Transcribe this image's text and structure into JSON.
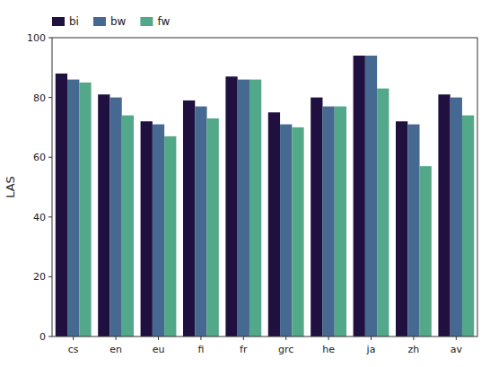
{
  "chart_data": {
    "type": "bar",
    "categories": [
      "cs",
      "en",
      "eu",
      "fi",
      "fr",
      "grc",
      "he",
      "ja",
      "zh",
      "av"
    ],
    "series": [
      {
        "name": "bi",
        "color": "#1f1040",
        "values": [
          88,
          81,
          72,
          79,
          87,
          75,
          80,
          94,
          72,
          81
        ]
      },
      {
        "name": "bw",
        "color": "#456990",
        "values": [
          86,
          80,
          71,
          77,
          86,
          71,
          77,
          94,
          71,
          80
        ]
      },
      {
        "name": "fw",
        "color": "#52a888",
        "values": [
          85,
          74,
          67,
          73,
          86,
          70,
          77,
          83,
          57,
          74
        ]
      }
    ],
    "ylabel": "LAS",
    "ylim": [
      0,
      100
    ],
    "yticks": [
      0,
      20,
      40,
      60,
      80,
      100
    ],
    "grid": false,
    "legend": "upper left"
  }
}
